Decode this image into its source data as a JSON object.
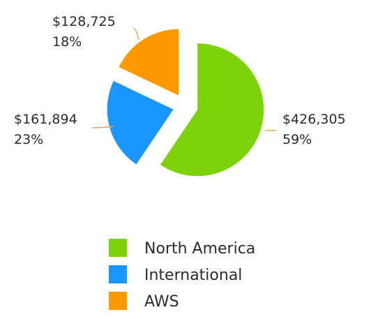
{
  "chart_data": {
    "type": "pie",
    "title": "",
    "slices": [
      {
        "label": "North America",
        "value": 426305,
        "value_label": "$426,305",
        "percent_label": "59%",
        "color": "#7DD30A"
      },
      {
        "label": "International",
        "value": 161894,
        "value_label": "$161,894",
        "percent_label": "23%",
        "color": "#1A96FF"
      },
      {
        "label": "AWS",
        "value": 128725,
        "value_label": "$128,725",
        "percent_label": "18%",
        "color": "#FF9900"
      }
    ],
    "legend_position": "bottom",
    "label_color": "#2B2B2B",
    "leader_line_color": "#F0A44A"
  }
}
